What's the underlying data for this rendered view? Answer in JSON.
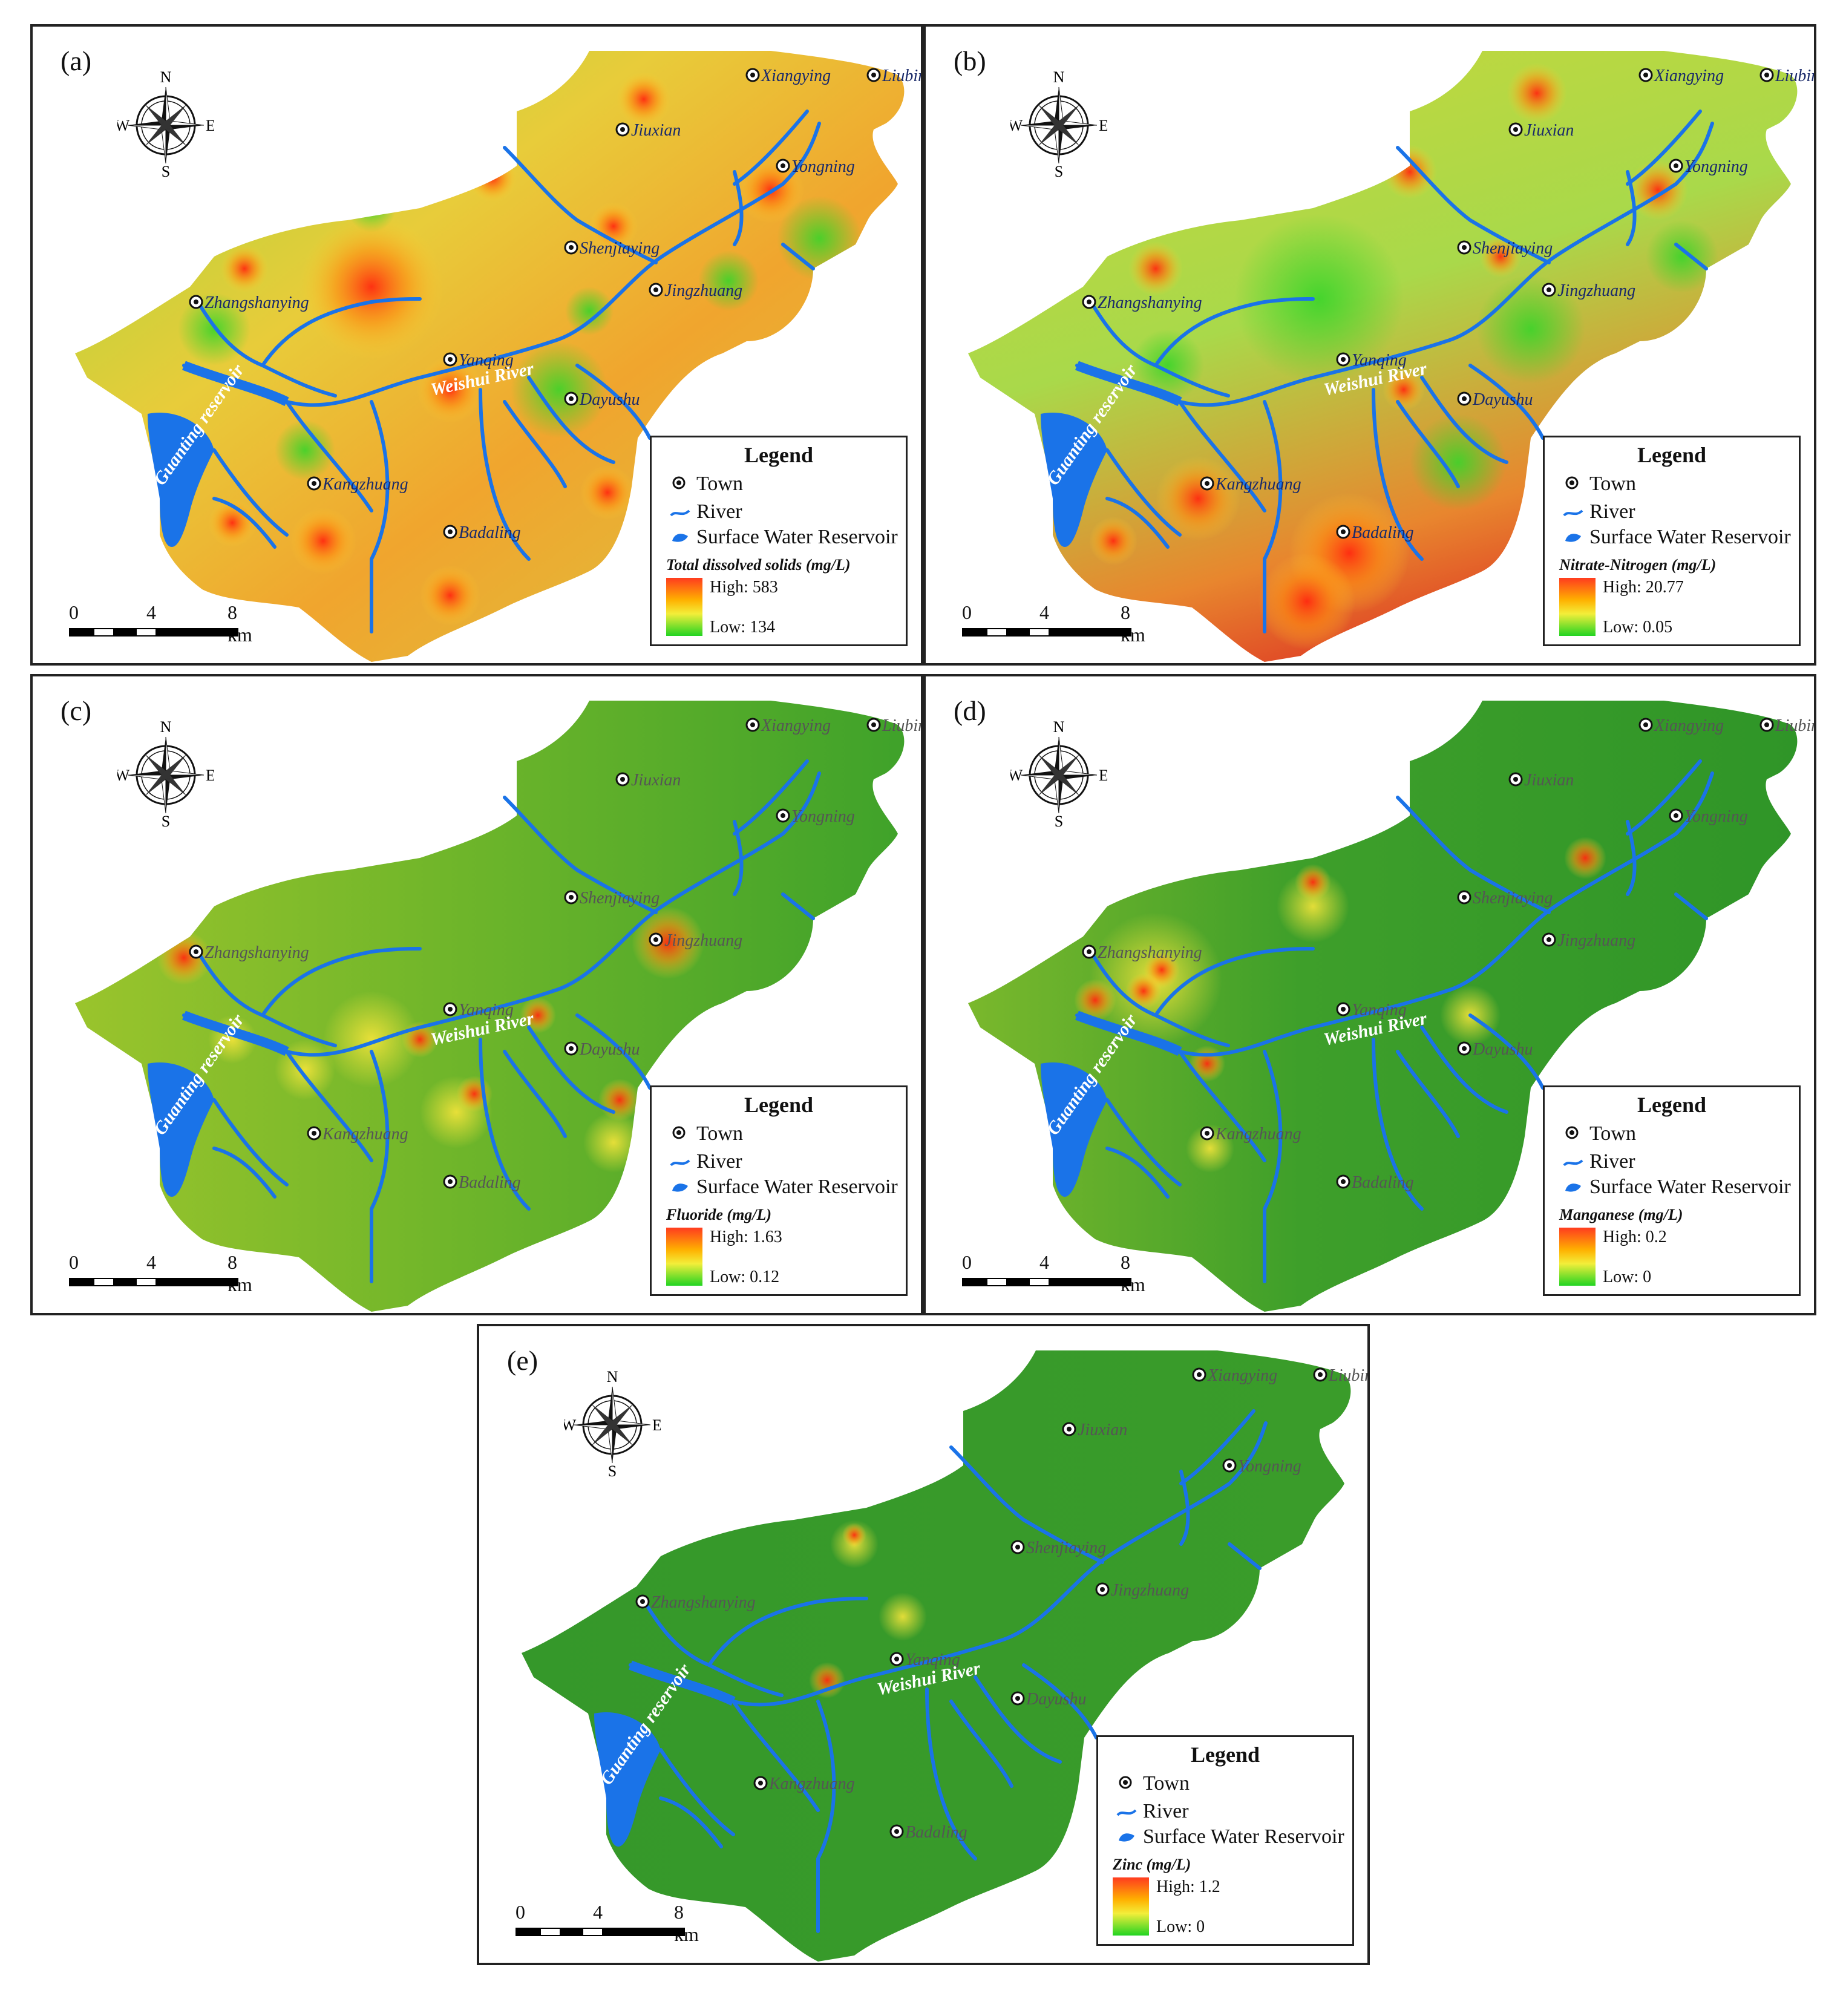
{
  "panels": [
    {
      "label": "(a)",
      "variable": "Total dissolved solids (mg/L)",
      "high": "High: 583",
      "low": "Low: 134",
      "theme": "warm"
    },
    {
      "label": "(b)",
      "variable": "Nitrate-Nitrogen (mg/L)",
      "high": "High: 20.77",
      "low": "Low: 0.05",
      "theme": "warm2"
    },
    {
      "label": "(c)",
      "variable": "Fluoride (mg/L)",
      "high": "High: 1.63",
      "low": "Low: 0.12",
      "theme": "green"
    },
    {
      "label": "(d)",
      "variable": "Manganese (mg/L)",
      "high": "High: 0.2",
      "low": "Low:  0",
      "theme": "green2"
    },
    {
      "label": "(e)",
      "variable": "Zinc (mg/L)",
      "high": "High: 1.2",
      "low": "Low:  0",
      "theme": "green3"
    }
  ],
  "legend": {
    "title": "Legend",
    "town": "Town",
    "river": "River",
    "reservoir": "Surface Water Reservoir"
  },
  "scale_bar": {
    "t0": "0",
    "t4": "4",
    "t8": "8 km"
  },
  "compass": {
    "n": "N",
    "s": "S",
    "e": "E",
    "w": "W"
  },
  "labels": {
    "reservoir": "Guanting reservoir",
    "river": "Weishui River"
  },
  "towns": [
    "Xiangying",
    "Liubinpu",
    "Jiuxian",
    "Yongning",
    "Shenjiaying",
    "Jingzhuang",
    "Zhangshanying",
    "Yanqing",
    "Dayushu",
    "Kangzhuang",
    "Badaling"
  ],
  "colors": {
    "river": "#1a73e8",
    "reservoir": "#1a73e8",
    "high": "#ff3b1f",
    "low": "#22d422"
  }
}
